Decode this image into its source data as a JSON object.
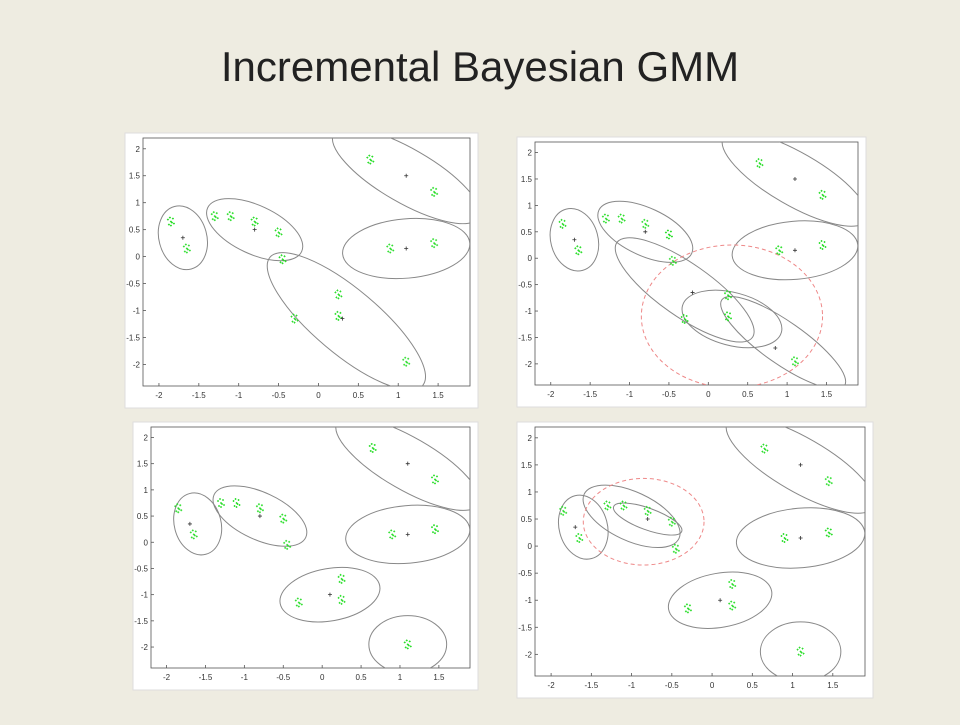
{
  "title": "Incremental Bayesian GMM",
  "chart_data": [
    {
      "type": "scatter",
      "xlim": [
        -2.2,
        1.9
      ],
      "ylim": [
        -2.4,
        2.2
      ],
      "xticks": [
        -2,
        -1.5,
        -1,
        -0.5,
        0,
        0.5,
        1,
        1.5
      ],
      "yticks": [
        -2,
        -1.5,
        -1,
        -0.5,
        0,
        0.5,
        1,
        1.5,
        2
      ],
      "points": {
        "color": "#22dd22",
        "x": [
          -1.85,
          -1.65,
          -1.3,
          -1.1,
          -0.8,
          -0.5,
          -0.45,
          -0.3,
          0.25,
          0.25,
          1.1,
          0.65,
          1.45,
          0.9,
          1.45
        ],
        "y": [
          0.65,
          0.15,
          0.75,
          0.75,
          0.65,
          0.45,
          -0.05,
          -1.15,
          -0.7,
          -1.1,
          -1.95,
          1.8,
          1.2,
          0.15,
          0.25
        ]
      },
      "centers": {
        "color": "#333333",
        "x": [
          -1.7,
          -0.8,
          1.1,
          1.1,
          0.3
        ],
        "y": [
          0.35,
          0.5,
          1.5,
          0.15,
          -1.15
        ]
      },
      "ellipses": [
        {
          "cx": -1.7,
          "cy": 0.35,
          "rx": 0.3,
          "ry": 0.6,
          "angle": -15,
          "color": "#888888",
          "dashed": false
        },
        {
          "cx": -0.8,
          "cy": 0.5,
          "rx": 0.65,
          "ry": 0.45,
          "angle": 25,
          "color": "#888888",
          "dashed": false
        },
        {
          "cx": 1.1,
          "cy": 1.5,
          "rx": 1.05,
          "ry": 0.5,
          "angle": 30,
          "color": "#888888",
          "dashed": false
        },
        {
          "cx": 1.1,
          "cy": 0.15,
          "rx": 0.8,
          "ry": 0.55,
          "angle": -5,
          "color": "#888888",
          "dashed": false
        },
        {
          "cx": 0.35,
          "cy": -1.2,
          "rx": 1.25,
          "ry": 0.6,
          "angle": 40,
          "color": "#888888",
          "dashed": false
        }
      ]
    },
    {
      "type": "scatter",
      "xlim": [
        -2.2,
        1.9
      ],
      "ylim": [
        -2.4,
        2.2
      ],
      "xticks": [
        -2,
        -1.5,
        -1,
        -0.5,
        0,
        0.5,
        1,
        1.5
      ],
      "yticks": [
        -2,
        -1.5,
        -1,
        -0.5,
        0,
        0.5,
        1,
        1.5,
        2
      ],
      "points": {
        "color": "#22dd22",
        "x": [
          -1.85,
          -1.65,
          -1.3,
          -1.1,
          -0.8,
          -0.5,
          -0.45,
          -0.3,
          0.25,
          0.25,
          1.1,
          0.65,
          1.45,
          0.9,
          1.45
        ],
        "y": [
          0.65,
          0.15,
          0.75,
          0.75,
          0.65,
          0.45,
          -0.05,
          -1.15,
          -0.7,
          -1.1,
          -1.95,
          1.8,
          1.2,
          0.15,
          0.25
        ]
      },
      "centers": {
        "color": "#333333",
        "x": [
          -1.7,
          -0.8,
          1.1,
          1.1,
          -0.2,
          0.85
        ],
        "y": [
          0.35,
          0.5,
          1.5,
          0.15,
          -0.65,
          -1.7
        ]
      },
      "ellipses": [
        {
          "cx": -1.7,
          "cy": 0.35,
          "rx": 0.3,
          "ry": 0.6,
          "angle": -15,
          "color": "#888888",
          "dashed": false
        },
        {
          "cx": -0.8,
          "cy": 0.5,
          "rx": 0.65,
          "ry": 0.45,
          "angle": 25,
          "color": "#888888",
          "dashed": false
        },
        {
          "cx": 1.1,
          "cy": 1.5,
          "rx": 1.05,
          "ry": 0.5,
          "angle": 30,
          "color": "#888888",
          "dashed": false
        },
        {
          "cx": 1.1,
          "cy": 0.15,
          "rx": 0.8,
          "ry": 0.55,
          "angle": -5,
          "color": "#888888",
          "dashed": false
        },
        {
          "cx": -0.3,
          "cy": -0.6,
          "rx": 1.05,
          "ry": 0.5,
          "angle": 35,
          "color": "#888888",
          "dashed": false
        },
        {
          "cx": 0.3,
          "cy": -1.15,
          "rx": 0.65,
          "ry": 0.5,
          "angle": 15,
          "color": "#888888",
          "dashed": false
        },
        {
          "cx": 0.95,
          "cy": -1.6,
          "rx": 0.95,
          "ry": 0.4,
          "angle": 35,
          "color": "#888888",
          "dashed": false
        },
        {
          "cx": 0.3,
          "cy": -1.1,
          "rx": 1.15,
          "ry": 1.35,
          "angle": 0,
          "color": "#ee8888",
          "dashed": true
        }
      ]
    },
    {
      "type": "scatter",
      "xlim": [
        -2.2,
        1.9
      ],
      "ylim": [
        -2.4,
        2.2
      ],
      "xticks": [
        -2,
        -1.5,
        -1,
        -0.5,
        0,
        0.5,
        1,
        1.5
      ],
      "yticks": [
        -2,
        -1.5,
        -1,
        -0.5,
        0,
        0.5,
        1,
        1.5,
        2
      ],
      "points": {
        "color": "#22dd22",
        "x": [
          -1.85,
          -1.65,
          -1.3,
          -1.1,
          -0.8,
          -0.5,
          -0.45,
          -0.3,
          0.25,
          0.25,
          1.1,
          0.65,
          1.45,
          0.9,
          1.45
        ],
        "y": [
          0.65,
          0.15,
          0.75,
          0.75,
          0.65,
          0.45,
          -0.05,
          -1.15,
          -0.7,
          -1.1,
          -1.95,
          1.8,
          1.2,
          0.15,
          0.25
        ]
      },
      "centers": {
        "color": "#333333",
        "x": [
          -1.7,
          -0.8,
          1.1,
          1.1,
          0.1
        ],
        "y": [
          0.35,
          0.5,
          1.5,
          0.15,
          -1.0
        ]
      },
      "ellipses": [
        {
          "cx": -1.6,
          "cy": 0.35,
          "rx": 0.3,
          "ry": 0.6,
          "angle": -15,
          "color": "#888888",
          "dashed": false
        },
        {
          "cx": -0.8,
          "cy": 0.5,
          "rx": 0.65,
          "ry": 0.45,
          "angle": 25,
          "color": "#888888",
          "dashed": false
        },
        {
          "cx": 1.1,
          "cy": 1.5,
          "rx": 1.05,
          "ry": 0.5,
          "angle": 30,
          "color": "#888888",
          "dashed": false
        },
        {
          "cx": 1.1,
          "cy": 0.15,
          "rx": 0.8,
          "ry": 0.55,
          "angle": -5,
          "color": "#888888",
          "dashed": false
        },
        {
          "cx": 0.1,
          "cy": -1.0,
          "rx": 0.65,
          "ry": 0.5,
          "angle": -10,
          "color": "#888888",
          "dashed": false
        },
        {
          "cx": 1.1,
          "cy": -1.95,
          "rx": 0.5,
          "ry": 0.55,
          "angle": 0,
          "color": "#888888",
          "dashed": false
        }
      ]
    },
    {
      "type": "scatter",
      "xlim": [
        -2.2,
        1.9
      ],
      "ylim": [
        -2.4,
        2.2
      ],
      "xticks": [
        -2,
        -1.5,
        -1,
        -0.5,
        0,
        0.5,
        1,
        1.5
      ],
      "yticks": [
        -2,
        -1.5,
        -1,
        -0.5,
        0,
        0.5,
        1,
        1.5,
        2
      ],
      "points": {
        "color": "#22dd22",
        "x": [
          -1.85,
          -1.65,
          -1.3,
          -1.1,
          -0.8,
          -0.5,
          -0.45,
          -0.3,
          0.25,
          0.25,
          1.1,
          0.65,
          1.45,
          0.9,
          1.45
        ],
        "y": [
          0.65,
          0.15,
          0.75,
          0.75,
          0.65,
          0.45,
          -0.05,
          -1.15,
          -0.7,
          -1.1,
          -1.95,
          1.8,
          1.2,
          0.15,
          0.25
        ]
      },
      "centers": {
        "color": "#333333",
        "x": [
          -1.7,
          -0.8,
          1.1,
          1.1,
          0.1
        ],
        "y": [
          0.35,
          0.5,
          1.5,
          0.15,
          -1.0
        ]
      },
      "ellipses": [
        {
          "cx": -1.6,
          "cy": 0.35,
          "rx": 0.3,
          "ry": 0.6,
          "angle": -15,
          "color": "#888888",
          "dashed": false
        },
        {
          "cx": -1.0,
          "cy": 0.55,
          "rx": 0.65,
          "ry": 0.45,
          "angle": 25,
          "color": "#888888",
          "dashed": false
        },
        {
          "cx": -0.8,
          "cy": 0.5,
          "rx": 0.45,
          "ry": 0.2,
          "angle": 20,
          "color": "#888888",
          "dashed": false
        },
        {
          "cx": -0.85,
          "cy": 0.45,
          "rx": 0.75,
          "ry": 0.8,
          "angle": 0,
          "color": "#ee8888",
          "dashed": true
        },
        {
          "cx": 1.1,
          "cy": 1.5,
          "rx": 1.05,
          "ry": 0.5,
          "angle": 30,
          "color": "#888888",
          "dashed": false
        },
        {
          "cx": 1.1,
          "cy": 0.15,
          "rx": 0.8,
          "ry": 0.55,
          "angle": -5,
          "color": "#888888",
          "dashed": false
        },
        {
          "cx": 0.1,
          "cy": -1.0,
          "rx": 0.65,
          "ry": 0.5,
          "angle": -10,
          "color": "#888888",
          "dashed": false
        },
        {
          "cx": 1.1,
          "cy": -1.95,
          "rx": 0.5,
          "ry": 0.55,
          "angle": 0,
          "color": "#888888",
          "dashed": false
        }
      ]
    }
  ]
}
